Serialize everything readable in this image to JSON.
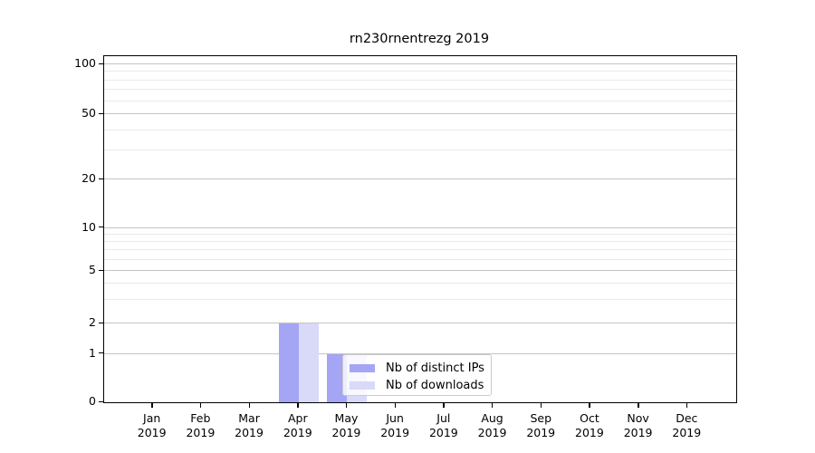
{
  "chart_data": {
    "type": "bar",
    "title": "rn230rnentrezg 2019",
    "categories": [
      "Jan",
      "Feb",
      "Mar",
      "Apr",
      "May",
      "Jun",
      "Jul",
      "Aug",
      "Sep",
      "Oct",
      "Nov",
      "Dec"
    ],
    "category_year": "2019",
    "series": [
      {
        "name": "Nb of distinct IPs",
        "color": "#a5a5f5",
        "values": [
          0,
          0,
          0,
          2,
          1,
          0,
          0,
          0,
          0,
          0,
          0,
          0
        ]
      },
      {
        "name": "Nb of downloads",
        "color": "#d9d9f8",
        "values": [
          0,
          0,
          0,
          2,
          1,
          0,
          0,
          0,
          0,
          0,
          0,
          0
        ]
      }
    ],
    "yscale": "symlog",
    "y_major_ticks": [
      0,
      1,
      2,
      5,
      10,
      20,
      50,
      100
    ],
    "y_minor_ticks": [
      3,
      4,
      6,
      7,
      8,
      9,
      30,
      40,
      60,
      70,
      80,
      90
    ],
    "ylim": [
      0,
      110
    ],
    "xlabel": "",
    "ylabel": "",
    "grid": "horizontal",
    "legend_position": "lower center"
  },
  "colors": {
    "background": "#ffffff",
    "spine": "#000000",
    "major_grid": "#c4c4c4",
    "minor_grid": "#e9e9e9",
    "legend_border": "#cccccc",
    "tick_label": "#000000"
  }
}
